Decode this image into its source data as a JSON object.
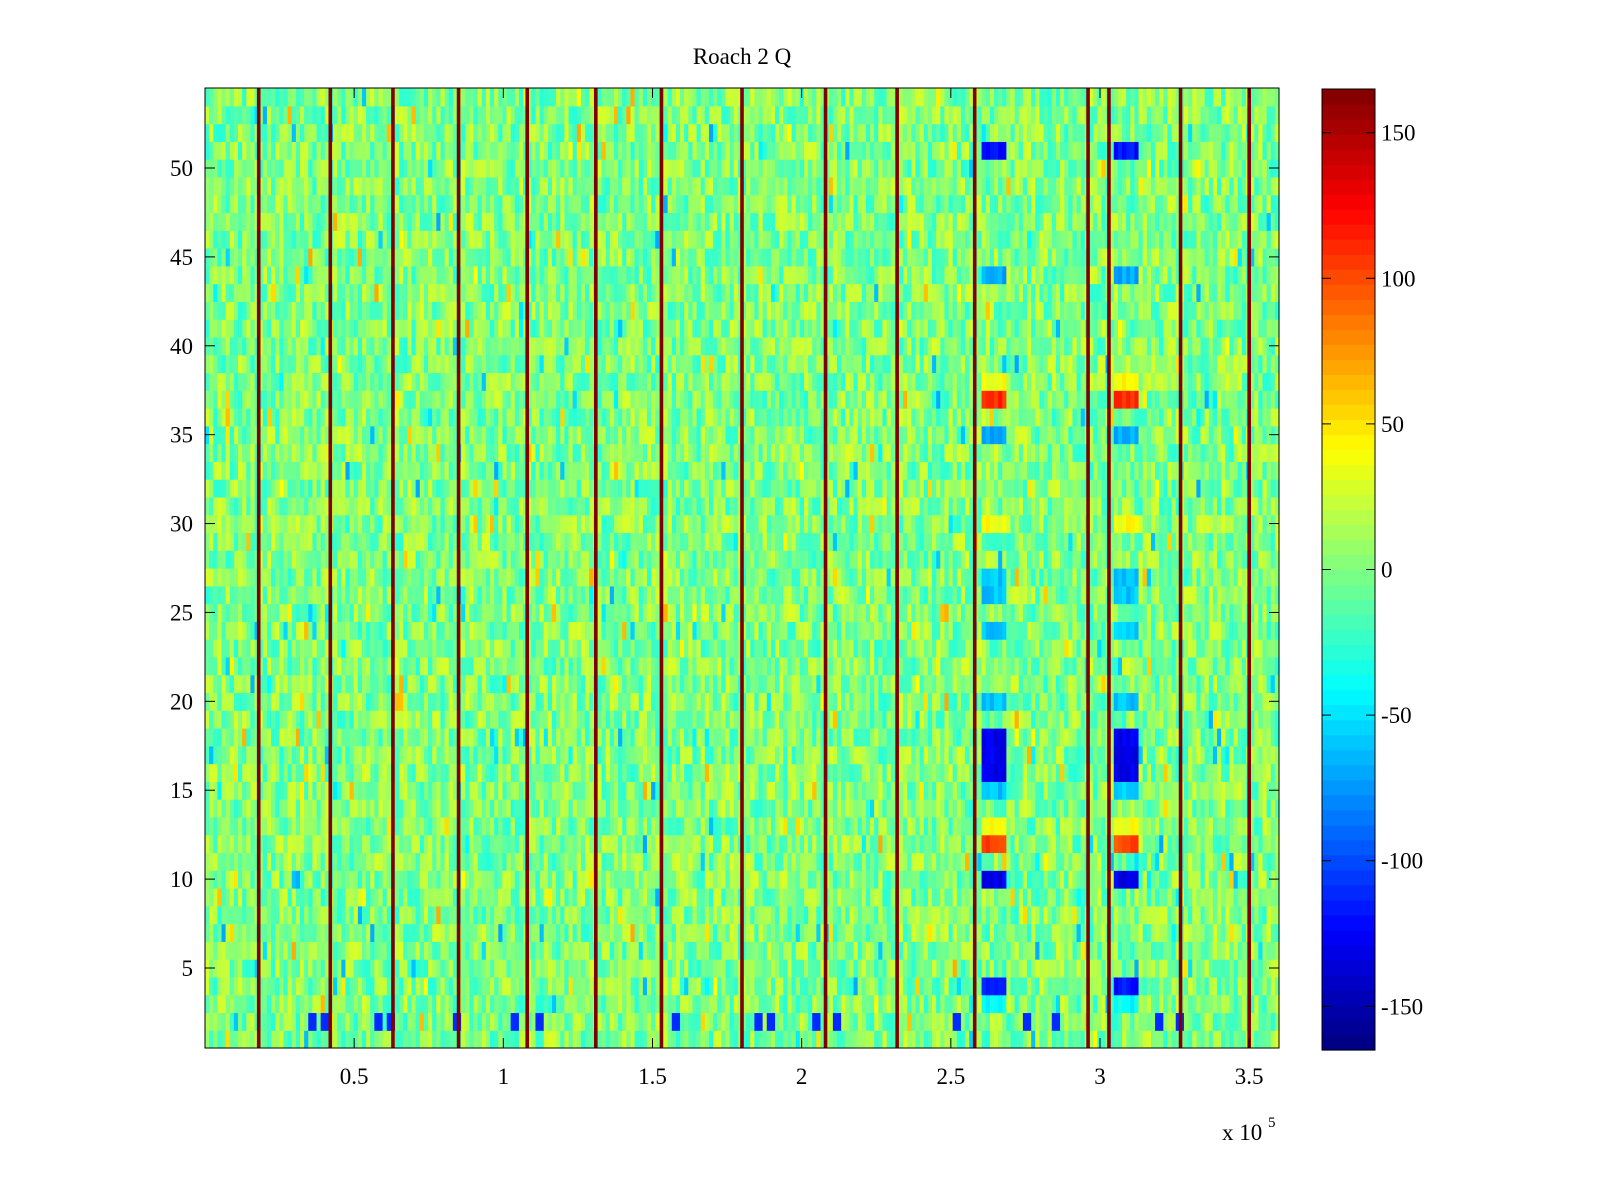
{
  "chart_data": {
    "type": "heatmap",
    "title": "Roach 2 Q",
    "xlabel": "",
    "ylabel": "",
    "x_exponent_label": "x 10",
    "x_exponent_power": "5",
    "xlim": [
      0,
      360000
    ],
    "ylim": [
      0.5,
      54.5
    ],
    "x_ticks": [
      50000,
      100000,
      150000,
      200000,
      250000,
      300000,
      350000
    ],
    "x_tick_labels": [
      "0.5",
      "1",
      "1.5",
      "2",
      "2.5",
      "3",
      "3.5"
    ],
    "y_ticks": [
      5,
      10,
      15,
      20,
      25,
      30,
      35,
      40,
      45,
      50
    ],
    "y_tick_labels": [
      "5",
      "10",
      "15",
      "20",
      "25",
      "30",
      "35",
      "40",
      "45",
      "50"
    ],
    "colorbar": {
      "colormap": "jet",
      "clim": [
        -165,
        165
      ],
      "ticks": [
        150,
        100,
        50,
        0,
        -50,
        -100,
        -150
      ],
      "tick_labels": [
        "150",
        "100",
        "50",
        "0",
        "-50",
        "-100",
        "-150"
      ]
    },
    "rows": 54,
    "background_value_range": [
      -30,
      30
    ],
    "vertical_stripes_x": [
      18000,
      42000,
      63000,
      85000,
      108000,
      131000,
      153000,
      180000,
      208000,
      232000,
      258000,
      296000,
      303000,
      327000,
      350000
    ],
    "stripe_value": 165,
    "anomaly_columns_x": [
      [
        260000,
        268000
      ],
      [
        305000,
        313000
      ]
    ],
    "anomaly_rows": [
      {
        "row": 51,
        "value": -120
      },
      {
        "row": 44,
        "value": -70
      },
      {
        "row": 38,
        "value": 40
      },
      {
        "row": 37,
        "value": 110
      },
      {
        "row": 35,
        "value": -70
      },
      {
        "row": 30,
        "value": 40
      },
      {
        "row": 27,
        "value": -60
      },
      {
        "row": 26,
        "value": -60
      },
      {
        "row": 24,
        "value": -60
      },
      {
        "row": 20,
        "value": -60
      },
      {
        "row": 18,
        "value": -130
      },
      {
        "row": 17,
        "value": -130
      },
      {
        "row": 16,
        "value": -130
      },
      {
        "row": 15,
        "value": -60
      },
      {
        "row": 13,
        "value": 40
      },
      {
        "row": 12,
        "value": 100
      },
      {
        "row": 10,
        "value": -130
      },
      {
        "row": 4,
        "value": -120
      },
      {
        "row": 3,
        "value": -40
      }
    ],
    "row_2_blue_spots_x": [
      36000,
      40000,
      58000,
      62000,
      84000,
      104000,
      112000,
      158000,
      185000,
      190000,
      205000,
      212000,
      252000,
      275000,
      285000,
      320000,
      327000
    ],
    "grid": false,
    "legend": "none"
  },
  "colors": {
    "axis": "#000000",
    "background": "#ffffff"
  }
}
